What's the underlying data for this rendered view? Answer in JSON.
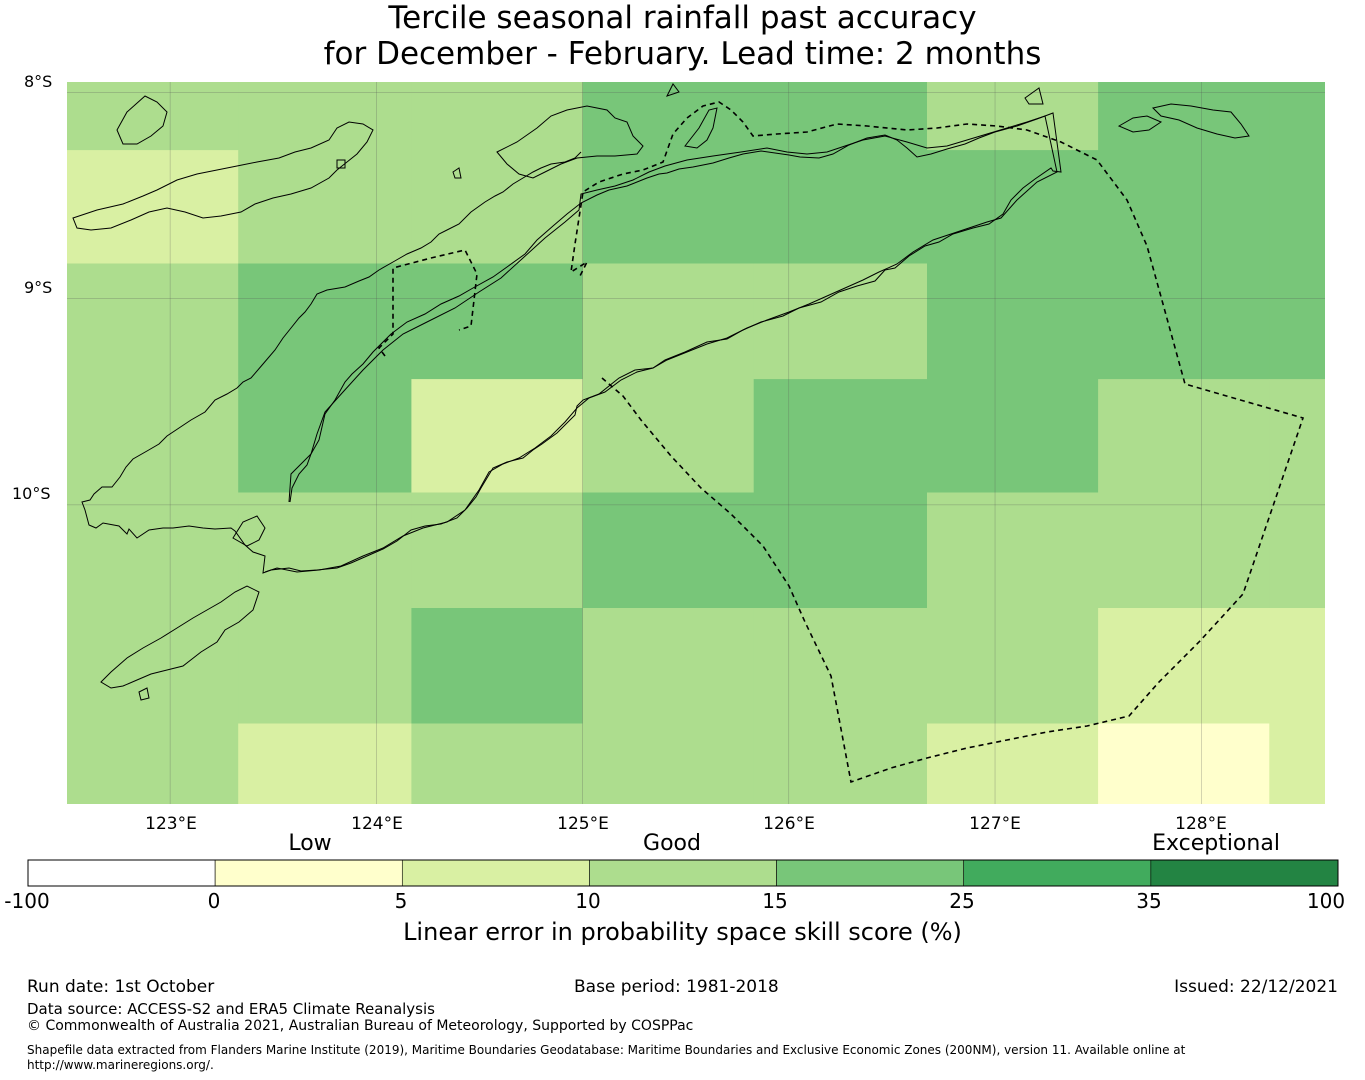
{
  "title": {
    "line1": "Tercile seasonal rainfall past accuracy",
    "line2": "for December - February. Lead time: 2 months"
  },
  "map": {
    "lat_labels": [
      "8°S",
      "9°S",
      "10°S"
    ],
    "lon_labels": [
      "123°E",
      "124°E",
      "125°E",
      "126°E",
      "127°E",
      "128°E"
    ],
    "extent": {
      "lon_min": 122.5,
      "lon_max": 128.6,
      "lat_top": -7.95,
      "lat_bottom": -11.45
    },
    "grid_lons": [
      123,
      124,
      125,
      126,
      127,
      128
    ],
    "grid_lats": [
      -8,
      -9,
      -10
    ],
    "skill_grid": {
      "col_edges_lon": [
        122.5,
        123.33,
        124.17,
        125.0,
        125.83,
        126.67,
        127.5,
        128.33,
        128.6
      ],
      "row_edges_lat": [
        -7.95,
        -8.28,
        -8.83,
        -9.39,
        -9.94,
        -10.5,
        -11.06,
        -11.45
      ],
      "cells": [
        [
          "10-15",
          "10-15",
          "10-15",
          "15-25",
          "15-25",
          "10-15",
          "15-25",
          "15-25"
        ],
        [
          "5-10",
          "10-15",
          "10-15",
          "15-25",
          "15-25",
          "15-25",
          "15-25",
          "15-25"
        ],
        [
          "10-15",
          "15-25",
          "15-25",
          "10-15",
          "10-15",
          "15-25",
          "15-25",
          "15-25"
        ],
        [
          "10-15",
          "15-25",
          "5-10",
          "10-15",
          "15-25",
          "15-25",
          "10-15",
          "10-15"
        ],
        [
          "10-15",
          "10-15",
          "10-15",
          "15-25",
          "15-25",
          "10-15",
          "10-15",
          "10-15"
        ],
        [
          "10-15",
          "10-15",
          "15-25",
          "10-15",
          "10-15",
          "10-15",
          "5-10",
          "5-10"
        ],
        [
          "10-15",
          "5-10",
          "10-15",
          "10-15",
          "10-15",
          "5-10",
          "0-5",
          "5-10"
        ]
      ]
    }
  },
  "colorbar": {
    "categories": [
      {
        "label": "Low"
      },
      {
        "label": "Good"
      },
      {
        "label": "Exceptional"
      }
    ],
    "segments": [
      {
        "from": -100,
        "to": 0,
        "color": "#ffffff"
      },
      {
        "from": 0,
        "to": 5,
        "color": "#ffffcc"
      },
      {
        "from": 5,
        "to": 10,
        "color": "#d9f0a3"
      },
      {
        "from": 10,
        "to": 15,
        "color": "#addd8e"
      },
      {
        "from": 15,
        "to": 25,
        "color": "#78c679"
      },
      {
        "from": 25,
        "to": 35,
        "color": "#41ab5d"
      },
      {
        "from": 35,
        "to": 100,
        "color": "#238443"
      }
    ],
    "ticks": [
      "-100",
      "0",
      "5",
      "10",
      "15",
      "25",
      "35",
      "100"
    ],
    "label": "Linear error in probability space skill score (%)"
  },
  "footer": {
    "run_date": "Run date: 1st October",
    "base_period": "Base period: 1981-2018",
    "issued": "Issued: 22/12/2021",
    "data_source": "Data source: ACCESS-S2 and ERA5 Climate Reanalysis",
    "copyright": "© Commonwealth of Australia 2021, Australian Bureau of Meteorology, Supported by COSPPac",
    "shapefile_line1": "Shapefile data extracted from Flanders Marine Institute (2019), Maritime Boundaries Geodatabase: Maritime Boundaries and Exclusive Economic Zones (200NM), version 11. Available online at",
    "shapefile_line2": "http://www.marineregions.org/."
  }
}
